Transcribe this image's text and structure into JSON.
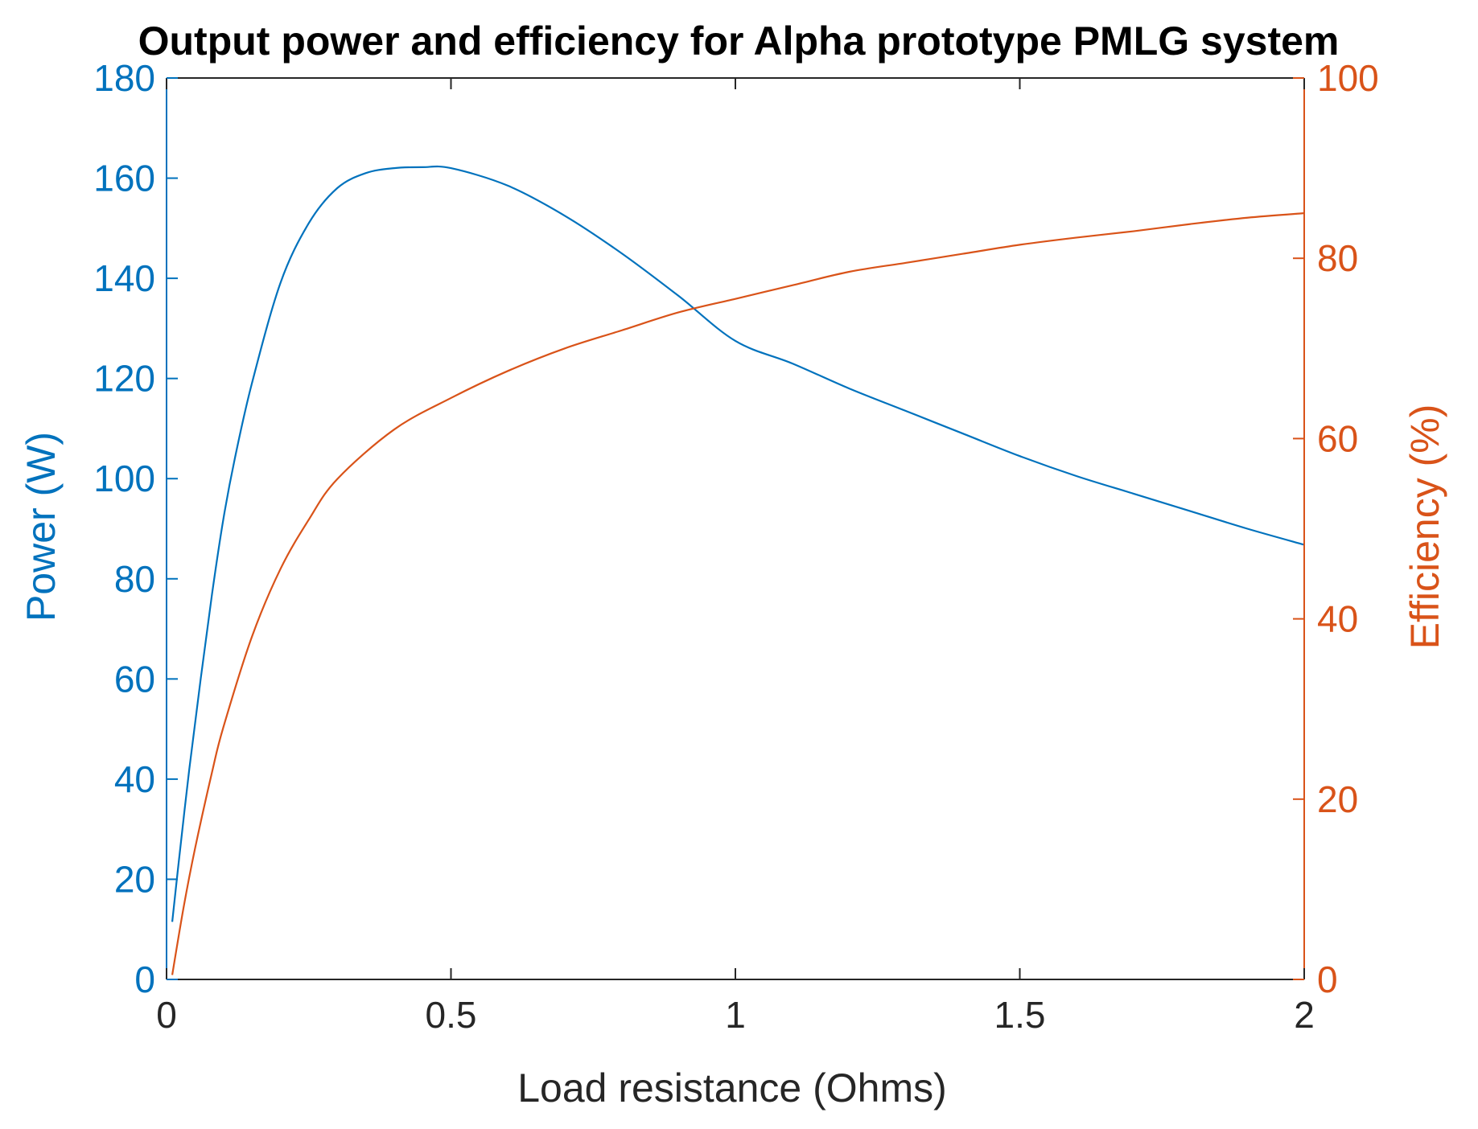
{
  "chart_data": {
    "type": "line",
    "title": "Output power and efficiency for Alpha prototype PMLG system",
    "xlabel": "Load resistance (Ohms)",
    "ylabel_left": "Power (W)",
    "ylabel_right": "Efficiency (%)",
    "xlim": [
      0,
      2
    ],
    "ylim_left": [
      0,
      180
    ],
    "ylim_right": [
      0,
      100
    ],
    "xticks": [
      0,
      0.5,
      1,
      1.5,
      2
    ],
    "xtick_labels": [
      "0",
      "0.5",
      "1",
      "1.5",
      "2"
    ],
    "yticks_left": [
      0,
      20,
      40,
      60,
      80,
      100,
      120,
      140,
      160,
      180
    ],
    "ytick_labels_left": [
      "0",
      "20",
      "40",
      "60",
      "80",
      "100",
      "120",
      "140",
      "160",
      "180"
    ],
    "yticks_right": [
      0,
      20,
      40,
      60,
      80,
      100
    ],
    "ytick_labels_right": [
      "0",
      "20",
      "40",
      "60",
      "80",
      "100"
    ],
    "grid": false,
    "box": "on",
    "colors": {
      "left_axis": "#0072BD",
      "right_axis": "#D95319",
      "x_axis": "#262626",
      "title": "#000000"
    },
    "series": [
      {
        "axis": "left",
        "color": "#0072BD",
        "x": [
          0.01,
          0.02,
          0.04,
          0.06,
          0.08,
          0.1,
          0.12,
          0.15,
          0.2,
          0.25,
          0.3,
          0.35,
          0.4,
          0.45,
          0.5,
          0.6,
          0.7,
          0.8,
          0.9,
          1.0,
          1.1,
          1.2,
          1.3,
          1.4,
          1.5,
          1.6,
          1.7,
          1.8,
          1.9,
          2.0
        ],
        "y": [
          11.5,
          22,
          42,
          60,
          77,
          92,
          104,
          119,
          139,
          151,
          158,
          161,
          162,
          162.2,
          162,
          158.5,
          152.5,
          145,
          136.5,
          127.5,
          123,
          118,
          113.5,
          109,
          104.5,
          100.5,
          97,
          93.5,
          90,
          86.8
        ]
      },
      {
        "axis": "right",
        "color": "#D95319",
        "x": [
          0.01,
          0.03,
          0.05,
          0.08,
          0.1,
          0.15,
          0.2,
          0.25,
          0.3,
          0.4,
          0.5,
          0.6,
          0.7,
          0.8,
          0.9,
          1.0,
          1.1,
          1.2,
          1.3,
          1.4,
          1.5,
          1.6,
          1.7,
          1.8,
          1.9,
          2.0
        ],
        "y": [
          0.5,
          8,
          14.5,
          23,
          28,
          38,
          45.5,
          51,
          55.5,
          61,
          64.5,
          67.5,
          70,
          72,
          74,
          75.5,
          77,
          78.5,
          79.5,
          80.5,
          81.5,
          82.3,
          83,
          83.8,
          84.5,
          85
        ]
      }
    ]
  }
}
